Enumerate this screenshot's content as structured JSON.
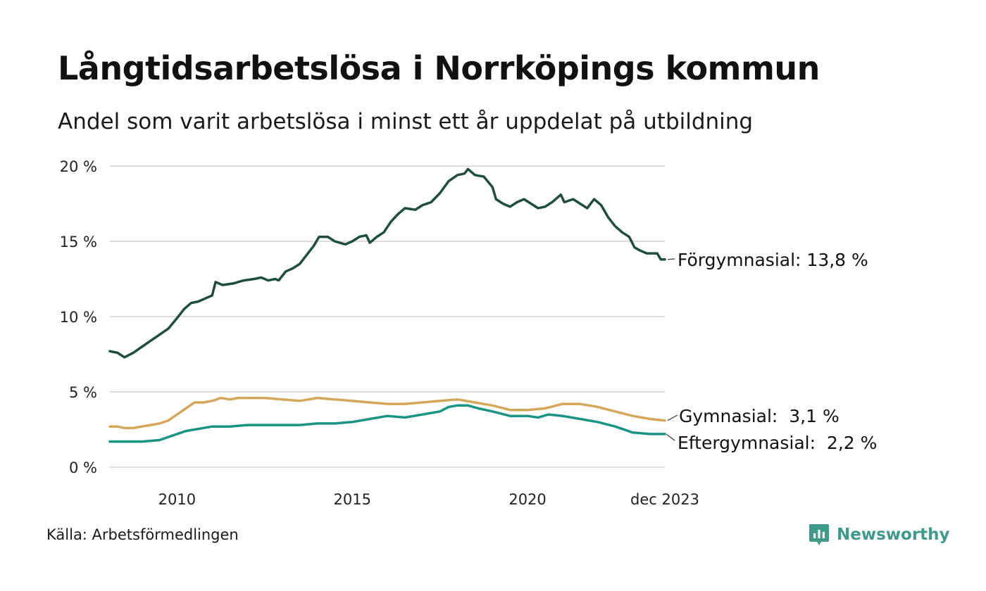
{
  "title": "Långtidsarbetslösa i Norrköpings kommun",
  "subtitle": "Andel som varit arbetslösa i minst ett år uppdelat på utbildning",
  "source": "Källa: Arbetsförmedlingen",
  "brand": {
    "name": "Newsworthy",
    "icon": "newsworthy-logo-icon",
    "color": "#3f9a8c"
  },
  "chart_data": {
    "type": "line",
    "x_range": [
      2008.083,
      2023.917
    ],
    "ylim": [
      0,
      20
    ],
    "yticks": [
      {
        "value": 0,
        "label": "0 %"
      },
      {
        "value": 5,
        "label": "5 %"
      },
      {
        "value": 10,
        "label": "10 %"
      },
      {
        "value": 15,
        "label": "15 %"
      },
      {
        "value": 20,
        "label": "20 %"
      }
    ],
    "xticks": [
      {
        "value": 2010,
        "label": "2010"
      },
      {
        "value": 2015,
        "label": "2015"
      },
      {
        "value": 2020,
        "label": "2020"
      },
      {
        "value": 2023.917,
        "label": "dec 2023"
      }
    ],
    "grid": true,
    "series": [
      {
        "name": "Förgymnasial",
        "end_label": "Förgymnasial: 13,8 %",
        "color": "#1f4d41",
        "points": [
          [
            2008.08,
            7.7
          ],
          [
            2008.3,
            7.6
          ],
          [
            2008.5,
            7.3
          ],
          [
            2008.75,
            7.6
          ],
          [
            2009.0,
            8.0
          ],
          [
            2009.25,
            8.4
          ],
          [
            2009.5,
            8.8
          ],
          [
            2009.75,
            9.2
          ],
          [
            2010.0,
            9.9
          ],
          [
            2010.2,
            10.5
          ],
          [
            2010.4,
            10.9
          ],
          [
            2010.6,
            11.0
          ],
          [
            2010.8,
            11.2
          ],
          [
            2011.0,
            11.4
          ],
          [
            2011.1,
            12.3
          ],
          [
            2011.3,
            12.1
          ],
          [
            2011.6,
            12.2
          ],
          [
            2011.9,
            12.4
          ],
          [
            2012.2,
            12.5
          ],
          [
            2012.4,
            12.6
          ],
          [
            2012.6,
            12.4
          ],
          [
            2012.8,
            12.5
          ],
          [
            2012.9,
            12.4
          ],
          [
            2013.1,
            13.0
          ],
          [
            2013.3,
            13.2
          ],
          [
            2013.5,
            13.5
          ],
          [
            2013.7,
            14.1
          ],
          [
            2013.9,
            14.7
          ],
          [
            2014.05,
            15.3
          ],
          [
            2014.3,
            15.3
          ],
          [
            2014.5,
            15.0
          ],
          [
            2014.8,
            14.8
          ],
          [
            2015.0,
            15.0
          ],
          [
            2015.2,
            15.3
          ],
          [
            2015.4,
            15.4
          ],
          [
            2015.5,
            14.9
          ],
          [
            2015.7,
            15.3
          ],
          [
            2015.9,
            15.6
          ],
          [
            2016.1,
            16.3
          ],
          [
            2016.3,
            16.8
          ],
          [
            2016.5,
            17.2
          ],
          [
            2016.8,
            17.1
          ],
          [
            2017.0,
            17.4
          ],
          [
            2017.25,
            17.6
          ],
          [
            2017.5,
            18.2
          ],
          [
            2017.75,
            19.0
          ],
          [
            2018.0,
            19.4
          ],
          [
            2018.2,
            19.5
          ],
          [
            2018.3,
            19.8
          ],
          [
            2018.5,
            19.4
          ],
          [
            2018.75,
            19.3
          ],
          [
            2019.0,
            18.6
          ],
          [
            2019.1,
            17.8
          ],
          [
            2019.3,
            17.5
          ],
          [
            2019.5,
            17.3
          ],
          [
            2019.7,
            17.6
          ],
          [
            2019.9,
            17.8
          ],
          [
            2020.1,
            17.5
          ],
          [
            2020.3,
            17.2
          ],
          [
            2020.5,
            17.3
          ],
          [
            2020.7,
            17.6
          ],
          [
            2020.95,
            18.1
          ],
          [
            2021.05,
            17.6
          ],
          [
            2021.3,
            17.8
          ],
          [
            2021.5,
            17.5
          ],
          [
            2021.7,
            17.2
          ],
          [
            2021.9,
            17.8
          ],
          [
            2022.1,
            17.4
          ],
          [
            2022.3,
            16.6
          ],
          [
            2022.5,
            16.0
          ],
          [
            2022.7,
            15.6
          ],
          [
            2022.9,
            15.3
          ],
          [
            2023.05,
            14.6
          ],
          [
            2023.2,
            14.4
          ],
          [
            2023.4,
            14.2
          ],
          [
            2023.55,
            14.2
          ],
          [
            2023.7,
            14.2
          ],
          [
            2023.8,
            13.8
          ],
          [
            2023.917,
            13.8
          ]
        ]
      },
      {
        "name": "Gymnasial",
        "end_label": "Gymnasial:  3,1 %",
        "color": "#d4a85a",
        "points": [
          [
            2008.08,
            2.7
          ],
          [
            2008.3,
            2.7
          ],
          [
            2008.5,
            2.6
          ],
          [
            2008.75,
            2.6
          ],
          [
            2009.0,
            2.7
          ],
          [
            2009.25,
            2.8
          ],
          [
            2009.5,
            2.9
          ],
          [
            2009.75,
            3.1
          ],
          [
            2010.0,
            3.5
          ],
          [
            2010.25,
            3.9
          ],
          [
            2010.5,
            4.3
          ],
          [
            2010.75,
            4.3
          ],
          [
            2011.0,
            4.4
          ],
          [
            2011.25,
            4.6
          ],
          [
            2011.5,
            4.5
          ],
          [
            2011.75,
            4.6
          ],
          [
            2012.0,
            4.6
          ],
          [
            2012.5,
            4.6
          ],
          [
            2013.0,
            4.5
          ],
          [
            2013.5,
            4.4
          ],
          [
            2014.0,
            4.6
          ],
          [
            2014.5,
            4.5
          ],
          [
            2015.0,
            4.4
          ],
          [
            2015.5,
            4.3
          ],
          [
            2016.0,
            4.2
          ],
          [
            2016.5,
            4.2
          ],
          [
            2017.0,
            4.3
          ],
          [
            2017.5,
            4.4
          ],
          [
            2018.0,
            4.5
          ],
          [
            2018.5,
            4.3
          ],
          [
            2019.0,
            4.1
          ],
          [
            2019.5,
            3.8
          ],
          [
            2020.0,
            3.8
          ],
          [
            2020.5,
            3.9
          ],
          [
            2021.0,
            4.2
          ],
          [
            2021.5,
            4.2
          ],
          [
            2022.0,
            4.0
          ],
          [
            2022.5,
            3.7
          ],
          [
            2023.0,
            3.4
          ],
          [
            2023.5,
            3.2
          ],
          [
            2023.917,
            3.1
          ]
        ]
      },
      {
        "name": "Eftergymnasial",
        "end_label": "Eftergymnasial:  2,2 %",
        "color": "#1a9483",
        "points": [
          [
            2008.08,
            1.7
          ],
          [
            2008.5,
            1.7
          ],
          [
            2009.0,
            1.7
          ],
          [
            2009.5,
            1.8
          ],
          [
            2010.0,
            2.2
          ],
          [
            2010.25,
            2.4
          ],
          [
            2010.5,
            2.5
          ],
          [
            2011.0,
            2.7
          ],
          [
            2011.5,
            2.7
          ],
          [
            2012.0,
            2.8
          ],
          [
            2012.5,
            2.8
          ],
          [
            2013.0,
            2.8
          ],
          [
            2013.5,
            2.8
          ],
          [
            2014.0,
            2.9
          ],
          [
            2014.5,
            2.9
          ],
          [
            2015.0,
            3.0
          ],
          [
            2015.5,
            3.2
          ],
          [
            2016.0,
            3.4
          ],
          [
            2016.5,
            3.3
          ],
          [
            2017.0,
            3.5
          ],
          [
            2017.5,
            3.7
          ],
          [
            2017.75,
            4.0
          ],
          [
            2018.0,
            4.1
          ],
          [
            2018.3,
            4.1
          ],
          [
            2018.6,
            3.9
          ],
          [
            2019.0,
            3.7
          ],
          [
            2019.5,
            3.4
          ],
          [
            2020.0,
            3.4
          ],
          [
            2020.3,
            3.3
          ],
          [
            2020.6,
            3.5
          ],
          [
            2021.0,
            3.4
          ],
          [
            2021.5,
            3.2
          ],
          [
            2022.0,
            3.0
          ],
          [
            2022.5,
            2.7
          ],
          [
            2023.0,
            2.3
          ],
          [
            2023.5,
            2.2
          ],
          [
            2023.917,
            2.2
          ]
        ]
      }
    ]
  }
}
